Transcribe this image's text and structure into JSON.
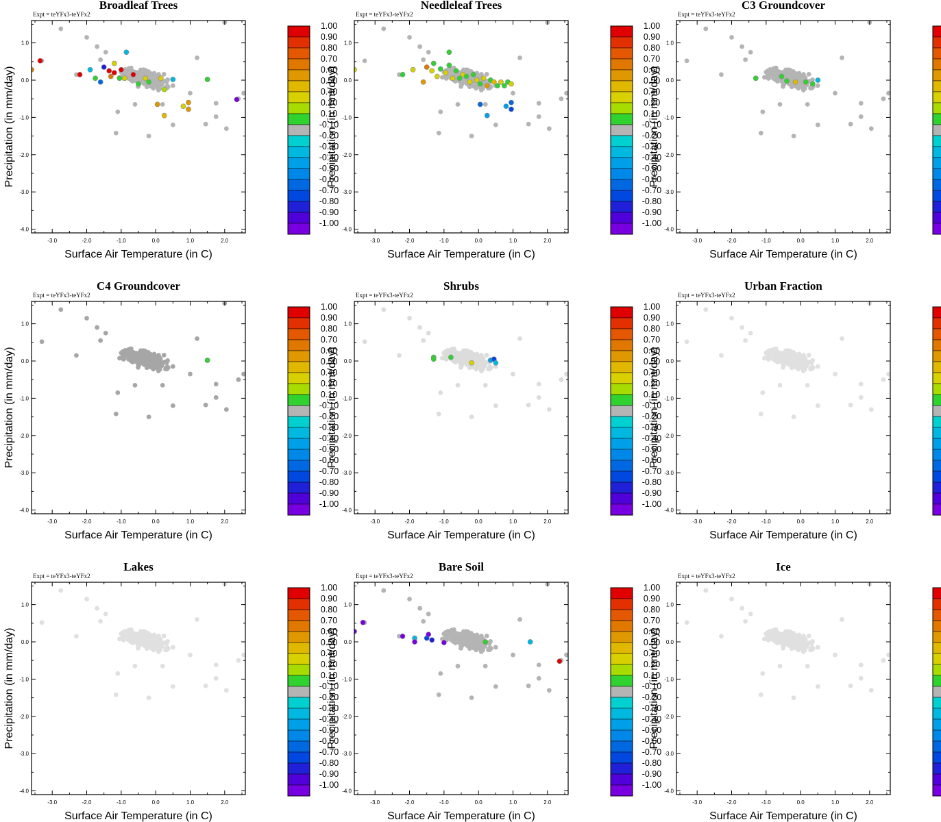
{
  "figure": {
    "xlabel": "Surface Air Temperature (in C)",
    "ylabel": "Precipitation (in mm/day)",
    "expt_label": "Expt = teYFx3-teYFx2"
  },
  "colorbar": {
    "labels": [
      "1.00",
      "0.90",
      "0.80",
      "0.70",
      "0.60",
      "0.50",
      "0.40",
      "0.20",
      "0.10",
      "-0.10",
      "-0.20",
      "-0.30",
      "-0.40",
      "-0.50",
      "-0.60",
      "-0.70",
      "-0.80",
      "-0.90",
      "-1.00"
    ],
    "colors": [
      "#e00000",
      "#e33000",
      "#e35800",
      "#e07800",
      "#e09800",
      "#e0b800",
      "#d8d000",
      "#a8dc00",
      "#30d230",
      "#b4b4b4",
      "#00d0d0",
      "#00b8e0",
      "#00a0e8",
      "#0088e8",
      "#0068e0",
      "#0048e0",
      "#2020d8",
      "#5000d8",
      "#7800e0"
    ]
  },
  "chart_data": [
    {
      "type": "scatter",
      "title": "Broadleaf Trees",
      "xlabel": "Surface Air Temperature (in C)",
      "ylabel": "Precipitation (in mm/day)",
      "xlim": [
        -3.6,
        2.6
      ],
      "ylim": [
        -4.1,
        1.6
      ],
      "xticks": [
        "-3.0",
        "-2.0",
        "-1.0",
        "0.0",
        "1.0",
        "2.0"
      ],
      "yticks": [
        "1.0",
        "0.0",
        "-1.0",
        "-2.0",
        "-3.0",
        "-4.0"
      ],
      "colorbar_range": [
        -1.0,
        1.0
      ],
      "background_color": "#b4b4b4",
      "points": [
        {
          "x": -3.6,
          "y": 0.28,
          "v": 0.65
        },
        {
          "x": -3.35,
          "y": 0.52,
          "v": 0.95
        },
        {
          "x": -2.2,
          "y": 0.15,
          "v": 0.95
        },
        {
          "x": -1.9,
          "y": 0.28,
          "v": -0.2
        },
        {
          "x": -1.75,
          "y": 0.05,
          "v": 0.15
        },
        {
          "x": -1.6,
          "y": -0.05,
          "v": -0.5
        },
        {
          "x": -1.5,
          "y": 0.35,
          "v": -0.7
        },
        {
          "x": -1.35,
          "y": 0.25,
          "v": 0.9
        },
        {
          "x": -1.3,
          "y": 0.1,
          "v": 0.65
        },
        {
          "x": -1.2,
          "y": 0.2,
          "v": 0.95
        },
        {
          "x": -1.2,
          "y": 0.45,
          "v": 0.35
        },
        {
          "x": -1.05,
          "y": 0.05,
          "v": 0.15
        },
        {
          "x": -1.0,
          "y": 0.28,
          "v": 0.95
        },
        {
          "x": -0.9,
          "y": 0.05,
          "v": 0.3
        },
        {
          "x": -0.65,
          "y": 0.15,
          "v": 0.9
        },
        {
          "x": -0.5,
          "y": -0.1,
          "v": 0.15
        },
        {
          "x": -0.3,
          "y": 0.05,
          "v": 0.35
        },
        {
          "x": -0.2,
          "y": -0.05,
          "v": 0.15
        },
        {
          "x": 0.05,
          "y": -0.65,
          "v": 0.5
        },
        {
          "x": 0.15,
          "y": 0.05,
          "v": 0.3
        },
        {
          "x": 0.25,
          "y": -0.25,
          "v": 0.2
        },
        {
          "x": 0.25,
          "y": -0.95,
          "v": 0.4
        },
        {
          "x": 0.5,
          "y": 0.02,
          "v": -0.2
        },
        {
          "x": 0.8,
          "y": -0.7,
          "v": 0.3
        },
        {
          "x": 0.95,
          "y": -0.6,
          "v": 0.5
        },
        {
          "x": 0.95,
          "y": -0.78,
          "v": 0.5
        },
        {
          "x": 1.5,
          "y": 0.02,
          "v": 0.15
        },
        {
          "x": 2.35,
          "y": -0.52,
          "v": -0.85
        },
        {
          "x": -0.85,
          "y": 0.75,
          "v": -0.2
        }
      ]
    },
    {
      "type": "scatter",
      "title": "Needleleaf Trees",
      "xlabel": "Surface Air Temperature (in C)",
      "ylabel": "Precipitation (in mm/day)",
      "xlim": [
        -3.6,
        2.6
      ],
      "ylim": [
        -4.1,
        1.6
      ],
      "xticks": [
        "-3.0",
        "-2.0",
        "-1.0",
        "0.0",
        "1.0",
        "2.0"
      ],
      "yticks": [
        "1.0",
        "0.0",
        "-1.0",
        "-2.0",
        "-3.0",
        "-4.0"
      ],
      "colorbar_range": [
        -1.0,
        1.0
      ],
      "background_color": "#b4b4b4",
      "points": [
        {
          "x": -3.6,
          "y": 0.28,
          "v": 0.35
        },
        {
          "x": -2.2,
          "y": 0.15,
          "v": 0.15
        },
        {
          "x": -1.9,
          "y": 0.28,
          "v": 0.35
        },
        {
          "x": -1.5,
          "y": 0.35,
          "v": 0.65
        },
        {
          "x": -1.6,
          "y": -0.05,
          "v": 0.5
        },
        {
          "x": -1.35,
          "y": 0.25,
          "v": 0.3
        },
        {
          "x": -1.3,
          "y": 0.45,
          "v": 0.15
        },
        {
          "x": -1.2,
          "y": 0.1,
          "v": 0.3
        },
        {
          "x": -1.1,
          "y": 0.3,
          "v": 0.15
        },
        {
          "x": -0.95,
          "y": 0.2,
          "v": 0.3
        },
        {
          "x": -0.85,
          "y": 0.4,
          "v": 0.15
        },
        {
          "x": -0.75,
          "y": 0.05,
          "v": 0.3
        },
        {
          "x": -0.65,
          "y": 0.25,
          "v": 0.15
        },
        {
          "x": -0.55,
          "y": 0.05,
          "v": 0.15
        },
        {
          "x": -0.45,
          "y": 0.15,
          "v": 0.35
        },
        {
          "x": -0.35,
          "y": 0.1,
          "v": 0.15
        },
        {
          "x": -0.25,
          "y": -0.05,
          "v": 0.3
        },
        {
          "x": -0.15,
          "y": 0.15,
          "v": 0.15
        },
        {
          "x": -0.05,
          "y": 0.0,
          "v": 0.35
        },
        {
          "x": 0.05,
          "y": -0.1,
          "v": 0.15
        },
        {
          "x": 0.15,
          "y": 0.05,
          "v": 0.3
        },
        {
          "x": 0.25,
          "y": -0.15,
          "v": 0.5
        },
        {
          "x": 0.35,
          "y": 0.0,
          "v": 0.15
        },
        {
          "x": 0.45,
          "y": -0.05,
          "v": 0.4
        },
        {
          "x": 0.55,
          "y": -0.15,
          "v": 0.15
        },
        {
          "x": 0.65,
          "y": -0.05,
          "v": 0.3
        },
        {
          "x": 0.75,
          "y": -0.15,
          "v": 0.15
        },
        {
          "x": 0.85,
          "y": -0.05,
          "v": 0.15
        },
        {
          "x": 0.95,
          "y": -0.1,
          "v": 0.3
        },
        {
          "x": -0.85,
          "y": 0.75,
          "v": 0.15
        },
        {
          "x": 0.05,
          "y": -0.65,
          "v": -0.5
        },
        {
          "x": 0.25,
          "y": -0.95,
          "v": -0.3
        },
        {
          "x": 0.8,
          "y": -0.7,
          "v": -0.3
        },
        {
          "x": 0.95,
          "y": -0.6,
          "v": -0.5
        },
        {
          "x": 0.95,
          "y": -0.78,
          "v": -0.55
        }
      ]
    },
    {
      "type": "scatter",
      "title": "C3 Groundcover",
      "xlabel": "Surface Air Temperature (in C)",
      "ylabel": "Precipitation (in mm/day)",
      "xlim": [
        -3.6,
        2.6
      ],
      "ylim": [
        -4.1,
        1.6
      ],
      "xticks": [
        "-3.0",
        "-2.0",
        "-1.0",
        "0.0",
        "1.0",
        "2.0"
      ],
      "yticks": [
        "1.0",
        "0.0",
        "-1.0",
        "-2.0",
        "-3.0",
        "-4.0"
      ],
      "colorbar_range": [
        -1.0,
        1.0
      ],
      "background_color": "#b4b4b4",
      "points": [
        {
          "x": -1.3,
          "y": 0.05,
          "v": 0.15
        },
        {
          "x": -0.55,
          "y": 0.1,
          "v": 0.15
        },
        {
          "x": -0.4,
          "y": -0.02,
          "v": 0.15
        },
        {
          "x": -0.15,
          "y": -0.05,
          "v": 0.4
        },
        {
          "x": 0.15,
          "y": -0.05,
          "v": 0.15
        },
        {
          "x": 0.35,
          "y": -0.1,
          "v": 0.15
        },
        {
          "x": 0.5,
          "y": 0.0,
          "v": -0.2
        }
      ]
    },
    {
      "type": "scatter",
      "title": "C4 Groundcover",
      "xlabel": "Surface Air Temperature (in C)",
      "ylabel": "Precipitation (in mm/day)",
      "xlim": [
        -3.6,
        2.6
      ],
      "ylim": [
        -4.1,
        1.6
      ],
      "xticks": [
        "-3.0",
        "-2.0",
        "-1.0",
        "0.0",
        "1.0",
        "2.0"
      ],
      "yticks": [
        "1.0",
        "0.0",
        "-1.0",
        "-2.0",
        "-3.0",
        "-4.0"
      ],
      "colorbar_range": [
        -1.0,
        1.0
      ],
      "background_color": "#a6a6a6",
      "points": [
        {
          "x": 1.5,
          "y": 0.02,
          "v": 0.15
        }
      ]
    },
    {
      "type": "scatter",
      "title": "Shrubs",
      "xlabel": "Surface Air Temperature (in C)",
      "ylabel": "Precipitation (in mm/day)",
      "xlim": [
        -3.6,
        2.6
      ],
      "ylim": [
        -4.1,
        1.6
      ],
      "xticks": [
        "-3.0",
        "-2.0",
        "-1.0",
        "0.0",
        "1.0",
        "2.0"
      ],
      "yticks": [
        "1.0",
        "0.0",
        "-1.0",
        "-2.0",
        "-3.0",
        "-4.0"
      ],
      "colorbar_range": [
        -1.0,
        1.0
      ],
      "background_color": "#dcdcdc",
      "points": [
        {
          "x": -1.3,
          "y": 0.1,
          "v": 0.15
        },
        {
          "x": -1.3,
          "y": 0.05,
          "v": 0.15
        },
        {
          "x": -0.8,
          "y": 0.1,
          "v": 0.15
        },
        {
          "x": -0.2,
          "y": -0.05,
          "v": 0.35
        },
        {
          "x": 0.35,
          "y": 0.02,
          "v": -0.3
        },
        {
          "x": 0.45,
          "y": 0.05,
          "v": -0.55
        },
        {
          "x": 0.5,
          "y": -0.05,
          "v": -0.2
        }
      ]
    },
    {
      "type": "scatter",
      "title": "Urban Fraction",
      "xlabel": "Surface Air Temperature (in C)",
      "ylabel": "Precipitation (in mm/day)",
      "xlim": [
        -3.6,
        2.6
      ],
      "ylim": [
        -4.1,
        1.6
      ],
      "xticks": [
        "-3.0",
        "-2.0",
        "-1.0",
        "0.0",
        "1.0",
        "2.0"
      ],
      "yticks": [
        "1.0",
        "0.0",
        "-1.0",
        "-2.0",
        "-3.0",
        "-4.0"
      ],
      "colorbar_range": [
        -1.0,
        1.0
      ],
      "background_color": "#e0e0e0",
      "points": []
    },
    {
      "type": "scatter",
      "title": "Lakes",
      "xlabel": "Surface Air Temperature (in C)",
      "ylabel": "Precipitation (in mm/day)",
      "xlim": [
        -3.6,
        2.6
      ],
      "ylim": [
        -4.1,
        1.6
      ],
      "xticks": [
        "-3.0",
        "-2.0",
        "-1.0",
        "0.0",
        "1.0",
        "2.0"
      ],
      "yticks": [
        "1.0",
        "0.0",
        "-1.0",
        "-2.0",
        "-3.0",
        "-4.0"
      ],
      "colorbar_range": [
        -1.0,
        1.0
      ],
      "background_color": "#e0e0e0",
      "points": []
    },
    {
      "type": "scatter",
      "title": "Bare Soil",
      "xlabel": "Surface Air Temperature (in C)",
      "ylabel": "Precipitation (in mm/day)",
      "xlim": [
        -3.6,
        2.6
      ],
      "ylim": [
        -4.1,
        1.6
      ],
      "xticks": [
        "-3.0",
        "-2.0",
        "-1.0",
        "0.0",
        "1.0",
        "2.0"
      ],
      "yticks": [
        "1.0",
        "0.0",
        "-1.0",
        "-2.0",
        "-3.0",
        "-4.0"
      ],
      "colorbar_range": [
        -1.0,
        1.0
      ],
      "background_color": "#b4b4b4",
      "points": [
        {
          "x": -3.6,
          "y": 0.28,
          "v": -0.9
        },
        {
          "x": -3.35,
          "y": 0.52,
          "v": -0.9
        },
        {
          "x": -2.2,
          "y": 0.15,
          "v": -0.9
        },
        {
          "x": -1.85,
          "y": 0.1,
          "v": -0.2
        },
        {
          "x": -1.85,
          "y": 0.0,
          "v": -0.9
        },
        {
          "x": -1.5,
          "y": 0.1,
          "v": -0.6
        },
        {
          "x": -1.45,
          "y": 0.2,
          "v": -0.95
        },
        {
          "x": -1.35,
          "y": 0.05,
          "v": -0.7
        },
        {
          "x": -1.0,
          "y": -0.02,
          "v": -0.95
        },
        {
          "x": 0.2,
          "y": 0.0,
          "v": 0.15
        },
        {
          "x": 1.5,
          "y": 0.0,
          "v": -0.2
        },
        {
          "x": 2.35,
          "y": -0.52,
          "v": 0.95
        }
      ]
    },
    {
      "type": "scatter",
      "title": "Ice",
      "xlabel": "Surface Air Temperature (in C)",
      "ylabel": "Precipitation (in mm/day)",
      "xlim": [
        -3.6,
        2.6
      ],
      "ylim": [
        -4.1,
        1.6
      ],
      "xticks": [
        "-3.0",
        "-2.0",
        "-1.0",
        "0.0",
        "1.0",
        "2.0"
      ],
      "yticks": [
        "1.0",
        "0.0",
        "-1.0",
        "-2.0",
        "-3.0",
        "-4.0"
      ],
      "colorbar_range": [
        -1.0,
        1.0
      ],
      "background_color": "#e0e0e0",
      "points": []
    }
  ]
}
